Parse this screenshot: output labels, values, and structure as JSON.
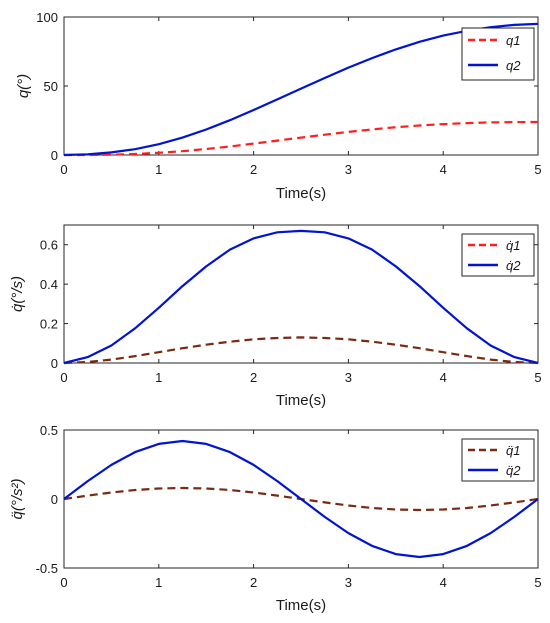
{
  "chart_data": [
    {
      "type": "line",
      "xlabel": "Time(s)",
      "ylabel": "q(°)",
      "xlim": [
        0,
        5
      ],
      "ylim": [
        0,
        100
      ],
      "xticks": [
        "0",
        "1",
        "2",
        "3",
        "4",
        "5"
      ],
      "yticks": [
        "0",
        "50",
        "100"
      ],
      "legend_position": "top-right",
      "series": [
        {
          "name": "q1",
          "color": "#ff1f1f",
          "style": "dashed",
          "x": [
            0,
            0.25,
            0.5,
            0.75,
            1,
            1.25,
            1.5,
            1.75,
            2,
            2.25,
            2.5,
            2.75,
            3,
            3.25,
            3.5,
            3.75,
            4,
            4.25,
            4.5,
            4.75,
            5
          ],
          "y": [
            0,
            0.03,
            0.23,
            0.72,
            1.57,
            2.78,
            4.34,
            6.18,
            8.23,
            10.4,
            12.59,
            14.72,
            16.73,
            18.55,
            20.12,
            21.41,
            22.41,
            23.13,
            23.6,
            23.84,
            23.9
          ]
        },
        {
          "name": "q2",
          "color": "#0014d2",
          "style": "solid",
          "x": [
            0,
            0.25,
            0.5,
            0.75,
            1,
            1.25,
            1.5,
            1.75,
            2,
            2.25,
            2.5,
            2.75,
            3,
            3.25,
            3.5,
            3.75,
            4,
            4.25,
            4.5,
            4.75,
            5
          ],
          "y": [
            0,
            0.5,
            1.9,
            4.2,
            7.8,
            12.6,
            18.5,
            25.2,
            32.6,
            40.3,
            48.1,
            55.8,
            63.3,
            70.2,
            76.5,
            82.0,
            86.5,
            90.0,
            92.6,
            94.3,
            95.0
          ]
        }
      ]
    },
    {
      "type": "line",
      "xlabel": "Time(s)",
      "ylabel": "q̇(°/s)",
      "xlim": [
        0,
        5
      ],
      "ylim": [
        0,
        0.7
      ],
      "xticks": [
        "0",
        "1",
        "2",
        "3",
        "4",
        "5"
      ],
      "yticks": [
        "0",
        "0.2",
        "0.4",
        "0.6"
      ],
      "legend_position": "top-right",
      "series": [
        {
          "name": "q̇1",
          "color": "#7a2a10",
          "style": "dashed",
          "x": [
            0,
            0.25,
            0.5,
            0.75,
            1,
            1.25,
            1.5,
            1.75,
            2,
            2.25,
            2.5,
            2.75,
            3,
            3.25,
            3.5,
            3.75,
            4,
            4.25,
            4.5,
            4.75,
            5
          ],
          "y": [
            0,
            0.005,
            0.017,
            0.035,
            0.055,
            0.075,
            0.093,
            0.108,
            0.12,
            0.127,
            0.13,
            0.127,
            0.12,
            0.108,
            0.093,
            0.075,
            0.055,
            0.035,
            0.017,
            0.005,
            0
          ]
        },
        {
          "name": "q̇2",
          "color": "#0014d2",
          "style": "solid",
          "x": [
            0,
            0.25,
            0.5,
            0.75,
            1,
            1.25,
            1.5,
            1.75,
            2,
            2.25,
            2.5,
            2.75,
            3,
            3.25,
            3.5,
            3.75,
            4,
            4.25,
            4.5,
            4.75,
            5
          ],
          "y": [
            0,
            0.03,
            0.089,
            0.176,
            0.28,
            0.39,
            0.49,
            0.575,
            0.632,
            0.663,
            0.67,
            0.663,
            0.632,
            0.575,
            0.49,
            0.39,
            0.28,
            0.176,
            0.089,
            0.03,
            0
          ]
        }
      ]
    },
    {
      "type": "line",
      "xlabel": "Time(s)",
      "ylabel": "q̈(°/s²)",
      "xlim": [
        0,
        5
      ],
      "ylim": [
        -0.5,
        0.5
      ],
      "xticks": [
        "0",
        "1",
        "2",
        "3",
        "4",
        "5"
      ],
      "yticks": [
        "-0.5",
        "0",
        "0.5"
      ],
      "legend_position": "top-right",
      "series": [
        {
          "name": "q̈1",
          "color": "#7a2a10",
          "style": "dashed",
          "x": [
            0,
            0.25,
            0.5,
            0.75,
            1,
            1.25,
            1.5,
            1.75,
            2,
            2.25,
            2.5,
            2.75,
            3,
            3.25,
            3.5,
            3.75,
            4,
            4.25,
            4.5,
            4.75,
            5
          ],
          "y": [
            0,
            0.025,
            0.047,
            0.065,
            0.076,
            0.08,
            0.076,
            0.065,
            0.047,
            0.025,
            0,
            -0.025,
            -0.047,
            -0.065,
            -0.076,
            -0.08,
            -0.076,
            -0.065,
            -0.047,
            -0.025,
            0
          ]
        },
        {
          "name": "q̈2",
          "color": "#0014d2",
          "style": "solid",
          "x": [
            0,
            0.25,
            0.5,
            0.75,
            1,
            1.25,
            1.5,
            1.75,
            2,
            2.25,
            2.5,
            2.75,
            3,
            3.25,
            3.5,
            3.75,
            4,
            4.25,
            4.5,
            4.75,
            5
          ],
          "y": [
            0,
            0.13,
            0.247,
            0.34,
            0.399,
            0.42,
            0.399,
            0.34,
            0.247,
            0.13,
            0,
            -0.13,
            -0.247,
            -0.34,
            -0.399,
            -0.42,
            -0.399,
            -0.34,
            -0.247,
            -0.13,
            0
          ]
        }
      ]
    }
  ]
}
